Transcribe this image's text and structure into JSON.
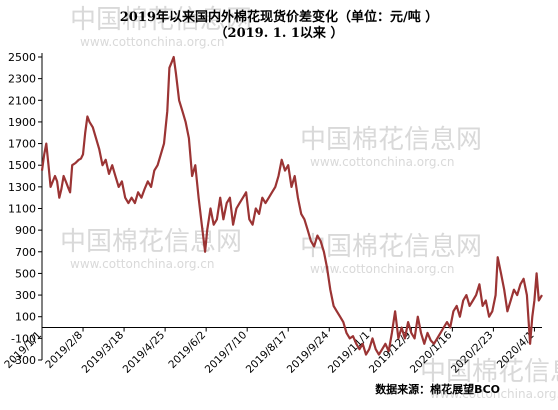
{
  "chart_data": {
    "type": "line",
    "title": "2019年以来国内外棉花现货价差变化（单位：元/吨 ）",
    "subtitle": "（2019. 1. 1以来   ）",
    "source": "数据来源：棉花展望BCO",
    "ylim": [
      -300,
      2500
    ],
    "yticks": [
      -300,
      -100,
      100,
      300,
      500,
      700,
      900,
      1100,
      1300,
      1500,
      1700,
      1900,
      2100,
      2300,
      2500
    ],
    "x_start": "2019/1/1",
    "x_end": "2020/4/8",
    "xticks": [
      "2019/1/1",
      "2019/2/8",
      "2019/3/18",
      "2019/4/25",
      "2019/6/2",
      "2019/7/10",
      "2019/8/17",
      "2019/9/24",
      "2019/11/1",
      "2019/12/9",
      "2020/1/16",
      "2020/2/23",
      "2020/4/1"
    ],
    "line_color": "#9b3434",
    "watermark": [
      "中国棉花信息网",
      "www.cottonchina.org.cn"
    ],
    "series": [
      {
        "values": [
          [
            "2019/1/1",
            1450
          ],
          [
            "2019/1/3",
            1600
          ],
          [
            "2019/1/5",
            1700
          ],
          [
            "2019/1/7",
            1500
          ],
          [
            "2019/1/9",
            1300
          ],
          [
            "2019/1/11",
            1350
          ],
          [
            "2019/1/13",
            1400
          ],
          [
            "2019/1/15",
            1350
          ],
          [
            "2019/1/17",
            1200
          ],
          [
            "2019/1/19",
            1280
          ],
          [
            "2019/1/21",
            1400
          ],
          [
            "2019/1/23",
            1350
          ],
          [
            "2019/1/25",
            1300
          ],
          [
            "2019/1/27",
            1250
          ],
          [
            "2019/1/29",
            1500
          ],
          [
            "2019/2/1",
            1520
          ],
          [
            "2019/2/4",
            1550
          ],
          [
            "2019/2/6",
            1560
          ],
          [
            "2019/2/8",
            1600
          ],
          [
            "2019/2/10",
            1800
          ],
          [
            "2019/2/12",
            1950
          ],
          [
            "2019/2/14",
            1900
          ],
          [
            "2019/2/17",
            1850
          ],
          [
            "2019/2/20",
            1750
          ],
          [
            "2019/2/23",
            1650
          ],
          [
            "2019/2/26",
            1500
          ],
          [
            "2019/3/1",
            1550
          ],
          [
            "2019/3/4",
            1420
          ],
          [
            "2019/3/7",
            1500
          ],
          [
            "2019/3/10",
            1400
          ],
          [
            "2019/3/13",
            1300
          ],
          [
            "2019/3/16",
            1350
          ],
          [
            "2019/3/19",
            1200
          ],
          [
            "2019/3/22",
            1150
          ],
          [
            "2019/3/25",
            1200
          ],
          [
            "2019/3/28",
            1150
          ],
          [
            "2019/3/31",
            1250
          ],
          [
            "2019/4/3",
            1200
          ],
          [
            "2019/4/6",
            1280
          ],
          [
            "2019/4/9",
            1350
          ],
          [
            "2019/4/12",
            1300
          ],
          [
            "2019/4/15",
            1450
          ],
          [
            "2019/4/18",
            1500
          ],
          [
            "2019/4/21",
            1600
          ],
          [
            "2019/4/24",
            1700
          ],
          [
            "2019/4/27",
            2000
          ],
          [
            "2019/4/29",
            2400
          ],
          [
            "2019/5/1",
            2450
          ],
          [
            "2019/5/3",
            2500
          ],
          [
            "2019/5/5",
            2350
          ],
          [
            "2019/5/8",
            2100
          ],
          [
            "2019/5/11",
            2000
          ],
          [
            "2019/5/14",
            1900
          ],
          [
            "2019/5/17",
            1750
          ],
          [
            "2019/5/20",
            1400
          ],
          [
            "2019/5/23",
            1500
          ],
          [
            "2019/5/26",
            1200
          ],
          [
            "2019/5/29",
            950
          ],
          [
            "2019/6/1",
            700
          ],
          [
            "2019/6/3",
            900
          ],
          [
            "2019/6/6",
            1100
          ],
          [
            "2019/6/9",
            950
          ],
          [
            "2019/6/12",
            1000
          ],
          [
            "2019/6/15",
            1200
          ],
          [
            "2019/6/18",
            1000
          ],
          [
            "2019/6/21",
            1150
          ],
          [
            "2019/6/24",
            1200
          ],
          [
            "2019/6/27",
            950
          ],
          [
            "2019/6/30",
            1100
          ],
          [
            "2019/7/3",
            1150
          ],
          [
            "2019/7/6",
            1200
          ],
          [
            "2019/7/9",
            1250
          ],
          [
            "2019/7/12",
            1000
          ],
          [
            "2019/7/15",
            950
          ],
          [
            "2019/7/18",
            1100
          ],
          [
            "2019/7/21",
            1050
          ],
          [
            "2019/7/24",
            1200
          ],
          [
            "2019/7/27",
            1150
          ],
          [
            "2019/7/30",
            1200
          ],
          [
            "2019/8/2",
            1250
          ],
          [
            "2019/8/5",
            1300
          ],
          [
            "2019/8/8",
            1400
          ],
          [
            "2019/8/11",
            1550
          ],
          [
            "2019/8/14",
            1450
          ],
          [
            "2019/8/17",
            1500
          ],
          [
            "2019/8/20",
            1300
          ],
          [
            "2019/8/23",
            1400
          ],
          [
            "2019/8/26",
            1200
          ],
          [
            "2019/8/29",
            1050
          ],
          [
            "2019/9/1",
            1000
          ],
          [
            "2019/9/4",
            900
          ],
          [
            "2019/9/7",
            800
          ],
          [
            "2019/9/10",
            750
          ],
          [
            "2019/9/13",
            850
          ],
          [
            "2019/9/16",
            800
          ],
          [
            "2019/9/19",
            700
          ],
          [
            "2019/9/22",
            550
          ],
          [
            "2019/9/25",
            350
          ],
          [
            "2019/9/28",
            200
          ],
          [
            "2019/10/1",
            150
          ],
          [
            "2019/10/4",
            100
          ],
          [
            "2019/10/7",
            50
          ],
          [
            "2019/10/10",
            -50
          ],
          [
            "2019/10/13",
            -100
          ],
          [
            "2019/10/16",
            -80
          ],
          [
            "2019/10/19",
            -150
          ],
          [
            "2019/10/22",
            -200
          ],
          [
            "2019/10/25",
            -150
          ],
          [
            "2019/10/28",
            -250
          ],
          [
            "2019/10/31",
            -200
          ],
          [
            "2019/11/3",
            -100
          ],
          [
            "2019/11/6",
            -200
          ],
          [
            "2019/11/9",
            -250
          ],
          [
            "2019/11/12",
            -200
          ],
          [
            "2019/11/15",
            -150
          ],
          [
            "2019/11/18",
            -220
          ],
          [
            "2019/11/21",
            -50
          ],
          [
            "2019/11/24",
            150
          ],
          [
            "2019/11/27",
            -100
          ],
          [
            "2019/11/30",
            0
          ],
          [
            "2019/12/3",
            -100
          ],
          [
            "2019/12/6",
            50
          ],
          [
            "2019/12/9",
            -50
          ],
          [
            "2019/12/12",
            -100
          ],
          [
            "2019/12/15",
            100
          ],
          [
            "2019/12/18",
            -50
          ],
          [
            "2019/12/21",
            -150
          ],
          [
            "2019/12/24",
            -50
          ],
          [
            "2019/12/27",
            -120
          ],
          [
            "2019/12/30",
            -150
          ],
          [
            "2020/1/2",
            -100
          ],
          [
            "2020/1/5",
            -50
          ],
          [
            "2020/1/8",
            0
          ],
          [
            "2020/1/11",
            50
          ],
          [
            "2020/1/14",
            0
          ],
          [
            "2020/1/17",
            150
          ],
          [
            "2020/1/20",
            200
          ],
          [
            "2020/1/23",
            100
          ],
          [
            "2020/1/26",
            250
          ],
          [
            "2020/1/29",
            300
          ],
          [
            "2020/2/1",
            200
          ],
          [
            "2020/2/4",
            250
          ],
          [
            "2020/2/7",
            300
          ],
          [
            "2020/2/10",
            400
          ],
          [
            "2020/2/13",
            200
          ],
          [
            "2020/2/16",
            250
          ],
          [
            "2020/2/19",
            100
          ],
          [
            "2020/2/22",
            150
          ],
          [
            "2020/2/25",
            300
          ],
          [
            "2020/2/27",
            650
          ],
          [
            "2020/3/1",
            500
          ],
          [
            "2020/3/4",
            350
          ],
          [
            "2020/3/7",
            150
          ],
          [
            "2020/3/10",
            250
          ],
          [
            "2020/3/13",
            350
          ],
          [
            "2020/3/16",
            300
          ],
          [
            "2020/3/19",
            400
          ],
          [
            "2020/3/22",
            450
          ],
          [
            "2020/3/25",
            300
          ],
          [
            "2020/3/28",
            -150
          ],
          [
            "2020/3/30",
            100
          ],
          [
            "2020/4/1",
            250
          ],
          [
            "2020/4/3",
            500
          ],
          [
            "2020/4/5",
            250
          ],
          [
            "2020/4/8",
            300
          ]
        ]
      }
    ]
  }
}
